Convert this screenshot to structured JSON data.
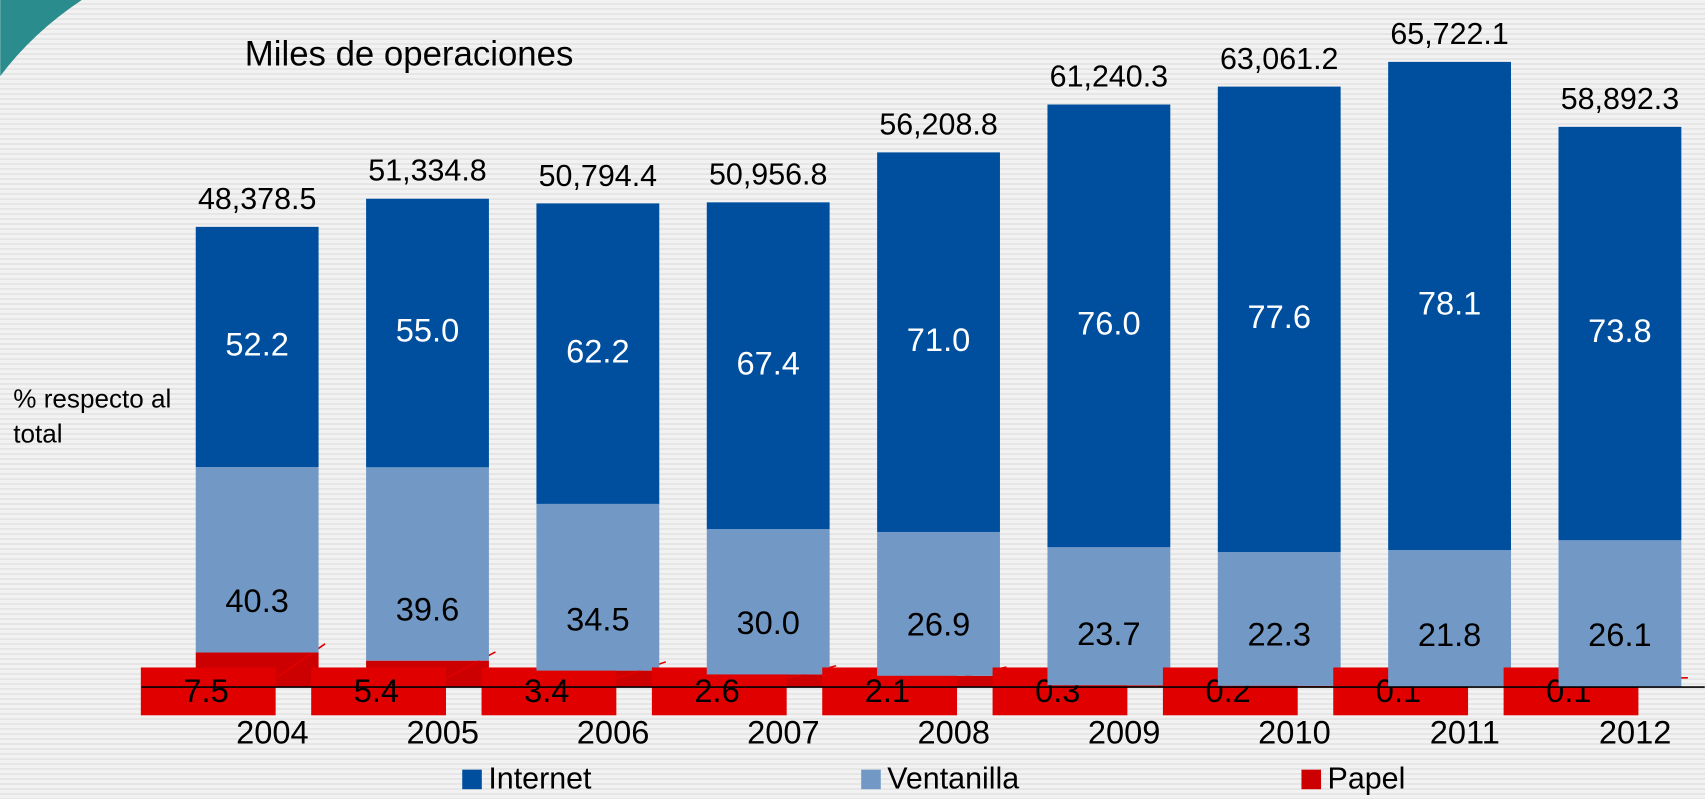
{
  "chart_data": {
    "type": "stacked_bar",
    "title": "Miles de operaciones",
    "y_label": "% respecto al total",
    "categories": [
      "2004",
      "2005",
      "2006",
      "2007",
      "2008",
      "2009",
      "2010",
      "2011",
      "2012"
    ],
    "totals": {
      "values": [
        48378.5,
        51334.8,
        50794.4,
        50956.8,
        56208.8,
        61240.3,
        63061.2,
        65722.1,
        58892.3
      ],
      "value_labels": [
        "48,378.5",
        "51,334.8",
        "50,794.4",
        "50,956.8",
        "56,208.8",
        "61,240.3",
        "63,061.2",
        "65,722.1",
        "58,892.3"
      ]
    },
    "series": [
      {
        "name": "Papel",
        "color": "#cc0000",
        "values": [
          7.5,
          5.4,
          3.4,
          2.6,
          2.1,
          0.3,
          0.2,
          0.1,
          0.1
        ],
        "value_labels": [
          "7.5",
          "5.4",
          "3.4",
          "2.6",
          "2.1",
          "0.3",
          "0.2",
          "0.1",
          "0.1"
        ]
      },
      {
        "name": "Ventanilla",
        "color": "#7299c6",
        "values": [
          40.3,
          39.6,
          34.5,
          30.0,
          26.9,
          23.7,
          22.3,
          21.8,
          26.1
        ],
        "value_labels": [
          "40.3",
          "39.6",
          "34.5",
          "30.0",
          "26.9",
          "23.7",
          "22.3",
          "21.8",
          "26.1"
        ]
      },
      {
        "name": "Internet",
        "color": "#004f9f",
        "values": [
          52.2,
          55.0,
          62.2,
          67.4,
          71.0,
          76.0,
          77.6,
          78.1,
          73.8
        ],
        "value_labels": [
          "52.2",
          "55.0",
          "62.2",
          "67.4",
          "71.0",
          "76.0",
          "77.6",
          "78.1",
          "73.8"
        ]
      }
    ],
    "ylim": [
      0,
      72000
    ],
    "legend": "bottom"
  }
}
